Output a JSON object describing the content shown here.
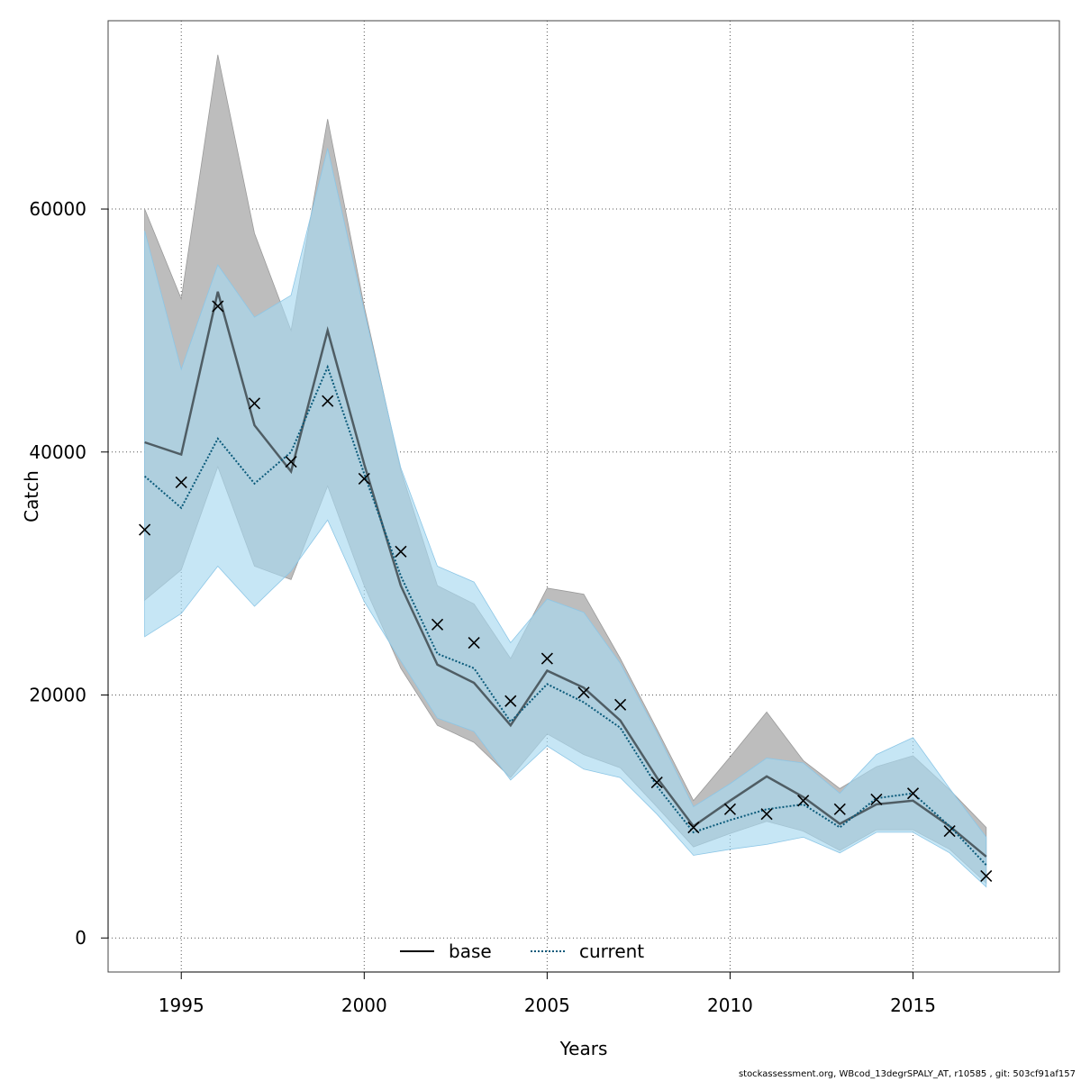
{
  "footer": "stockassessment.org, WBcod_13degrSPALY_AT, r10585 , git: 503cf91af157",
  "chart_data": {
    "type": "line",
    "xlabel": "Years",
    "ylabel": "Catch",
    "xlim": [
      1993,
      2019
    ],
    "ylim": [
      -2800,
      75500
    ],
    "xticks": [
      1995,
      2000,
      2005,
      2010,
      2015
    ],
    "yticks": [
      0,
      20000,
      40000,
      60000
    ],
    "grid": true,
    "legend_position": "bottom",
    "x": [
      1994,
      1995,
      1996,
      1997,
      1998,
      1999,
      2000,
      2001,
      2002,
      2003,
      2004,
      2005,
      2006,
      2007,
      2008,
      2009,
      2010,
      2011,
      2012,
      2013,
      2014,
      2015,
      2016,
      2017
    ],
    "series": [
      {
        "name": "base",
        "line_style": "solid",
        "line_color": "#000000",
        "band_color": "#bdbdbd",
        "values": [
          40800,
          39800,
          53200,
          42200,
          38400,
          50000,
          39000,
          29000,
          22500,
          21000,
          17500,
          22000,
          20600,
          17900,
          13200,
          9200,
          11300,
          13300,
          11600,
          9400,
          11000,
          11300,
          9200,
          6700
        ],
        "lower": [
          27800,
          30300,
          38800,
          30600,
          29500,
          37200,
          29000,
          22200,
          17500,
          16100,
          13200,
          16800,
          15100,
          14000,
          10800,
          7500,
          8600,
          9600,
          8800,
          7200,
          8900,
          8900,
          7300,
          4500
        ],
        "upper": [
          60000,
          52600,
          72700,
          58000,
          50000,
          67400,
          52000,
          38500,
          29000,
          27500,
          23000,
          28800,
          28300,
          23000,
          17200,
          11300,
          14900,
          18600,
          14600,
          12300,
          14100,
          15000,
          12200,
          9100
        ]
      },
      {
        "name": "current",
        "line_style": "dotted",
        "line_color": "#0a5a7a",
        "band_color": "#a8d8f0",
        "values": [
          38000,
          35400,
          41100,
          37400,
          40000,
          47000,
          38200,
          29800,
          23400,
          22200,
          17800,
          20900,
          19400,
          17300,
          12500,
          8700,
          9700,
          10600,
          11000,
          9100,
          11500,
          11900,
          9200,
          6000
        ],
        "lower": [
          24800,
          26700,
          30600,
          27300,
          30200,
          34400,
          27700,
          22800,
          18100,
          17000,
          13000,
          15800,
          13900,
          13200,
          10200,
          6800,
          7300,
          7700,
          8300,
          7000,
          8700,
          8700,
          7000,
          4200
        ],
        "upper": [
          58200,
          46800,
          55400,
          51100,
          52900,
          65000,
          51600,
          38700,
          30600,
          29300,
          24300,
          27900,
          26800,
          22600,
          16900,
          10800,
          12700,
          14800,
          14400,
          11900,
          15100,
          16500,
          12300,
          8300
        ]
      }
    ],
    "observations": {
      "marker": "x",
      "values": [
        33600,
        37500,
        52000,
        44000,
        39200,
        44200,
        37800,
        31800,
        25800,
        24300,
        19500,
        23000,
        20200,
        19200,
        12800,
        9100,
        10600,
        10200,
        11300,
        10600,
        11400,
        11900,
        8800,
        5100
      ]
    }
  }
}
